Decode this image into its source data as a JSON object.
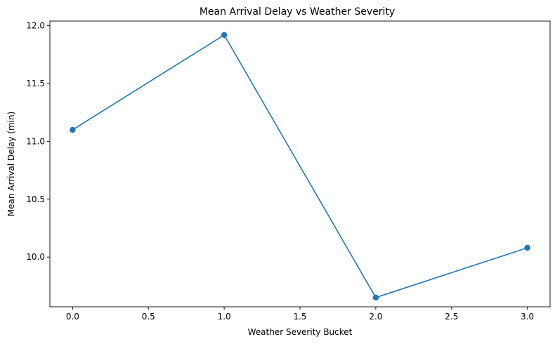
{
  "chart_data": {
    "type": "line",
    "title": "Mean Arrival Delay vs Weather Severity",
    "xlabel": "Weather Severity Bucket",
    "ylabel": "Mean Arrival Delay (min)",
    "xlim": [
      -0.15,
      3.15
    ],
    "ylim": [
      9.57,
      12.04
    ],
    "x_ticks": [
      0.0,
      0.5,
      1.0,
      1.5,
      2.0,
      2.5,
      3.0
    ],
    "x_tick_labels": [
      "0.0",
      "0.5",
      "1.0",
      "1.5",
      "2.0",
      "2.5",
      "3.0"
    ],
    "y_ticks": [
      10.0,
      10.5,
      11.0,
      11.5,
      12.0
    ],
    "y_tick_labels": [
      "10.0",
      "10.5",
      "11.0",
      "11.5",
      "12.0"
    ],
    "grid": false,
    "series": [
      {
        "x": [
          0,
          1,
          2,
          3
        ],
        "y": [
          11.1,
          11.92,
          9.65,
          10.08
        ],
        "color": "#1f77b4",
        "marker": "circle"
      }
    ]
  }
}
